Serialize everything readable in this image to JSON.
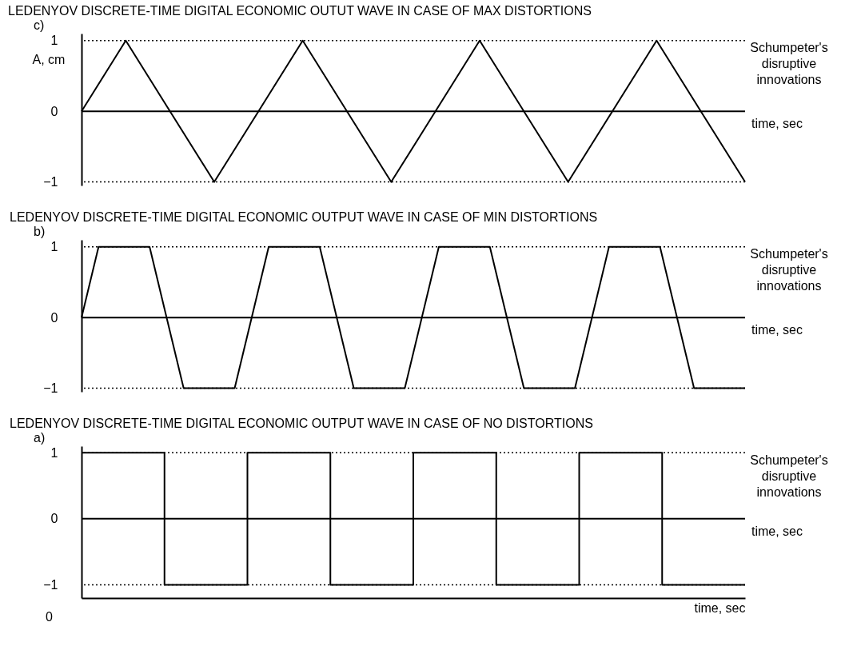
{
  "chart_data": [
    {
      "type": "line",
      "title": "LEDENYOV DISCRETE-TIME DIGITAL ECONOMIC OUTUT WAVE IN CASE OF MAX DISTORTIONS",
      "ylabel": "A, cm",
      "annotations": [
        "c)",
        "Schumpeter's disruptive innovations"
      ],
      "categories": [
        null,
        null,
        null,
        null,
        null,
        null,
        null,
        null,
        null,
        null,
        null,
        null,
        null,
        null,
        null,
        null
      ],
      "series": [
        {
          "color": "#000000",
          "values": [
            0,
            1,
            0,
            -1,
            0,
            1,
            0,
            -1,
            0,
            1,
            0,
            -1,
            0,
            1,
            0,
            -1
          ]
        }
      ],
      "ylim": [
        -1.05,
        1.1
      ],
      "yticks": [
        -1,
        0,
        1
      ],
      "tick_labels": "y",
      "legend": false,
      "grid": false,
      "marker": "none",
      "ref_lines": [
        {
          "axis": "y",
          "value": 1,
          "line_style": "dotted"
        },
        {
          "axis": "y",
          "value": -1,
          "line_style": "dotted"
        },
        {
          "axis": "y",
          "value": 0,
          "label": "time, sec",
          "line_style": "solid"
        }
      ]
    },
    {
      "type": "line",
      "title": "LEDENYOV DISCRETE-TIME DIGITAL ECONOMIC OUTPUT WAVE IN CASE OF MIN DISTORTIONS",
      "annotations": [
        "b)",
        "Schumpeter's disruptive innovations"
      ],
      "categories": [
        null,
        null,
        null,
        null,
        null,
        null,
        null,
        null,
        null,
        null,
        null,
        null,
        null,
        null,
        null,
        null,
        null,
        null,
        null,
        null,
        null,
        null,
        null,
        null,
        null,
        null,
        null,
        null,
        null,
        null,
        null,
        null,
        null,
        null,
        null,
        null,
        null,
        null,
        null,
        null
      ],
      "series": [
        {
          "color": "#000000",
          "values": [
            0,
            1,
            1,
            1,
            1,
            0,
            -1,
            -1,
            -1,
            -1,
            0,
            1,
            1,
            1,
            1,
            0,
            -1,
            -1,
            -1,
            -1,
            0,
            1,
            1,
            1,
            1,
            0,
            -1,
            -1,
            -1,
            -1,
            0,
            1,
            1,
            1,
            1,
            0,
            -1,
            -1,
            -1,
            -1
          ]
        }
      ],
      "ylim": [
        -1.05,
        1.1
      ],
      "yticks": [
        -1,
        0,
        1
      ],
      "tick_labels": "y",
      "legend": false,
      "grid": false,
      "marker": "none",
      "ref_lines": [
        {
          "axis": "y",
          "value": 1,
          "line_style": "dotted"
        },
        {
          "axis": "y",
          "value": -1,
          "line_style": "dotted"
        },
        {
          "axis": "y",
          "value": 0,
          "label": "time, sec",
          "line_style": "solid"
        }
      ]
    },
    {
      "type": "step",
      "title": "LEDENYOV DISCRETE-TIME DIGITAL ECONOMIC OUTPUT WAVE IN CASE OF NO DISTORTIONS",
      "xlabel": "time, sec",
      "annotations": [
        "a)",
        "Schumpeter's disruptive innovations",
        "0"
      ],
      "categories": [
        null,
        null,
        null,
        null,
        null,
        null,
        null,
        null,
        null
      ],
      "series": [
        {
          "color": "#000000",
          "values": [
            1,
            -1,
            1,
            -1,
            1,
            -1,
            1,
            -1,
            -1
          ]
        }
      ],
      "ylim": [
        -1.2,
        1.1
      ],
      "yticks": [
        -1,
        0,
        1
      ],
      "tick_labels": "y",
      "legend": false,
      "grid": false,
      "marker": "none",
      "ref_lines": [
        {
          "axis": "y",
          "value": 1,
          "line_style": "dotted"
        },
        {
          "axis": "y",
          "value": -1,
          "line_style": "dotted"
        },
        {
          "axis": "y",
          "value": 0,
          "label": "time, sec",
          "line_style": "solid"
        }
      ]
    }
  ]
}
